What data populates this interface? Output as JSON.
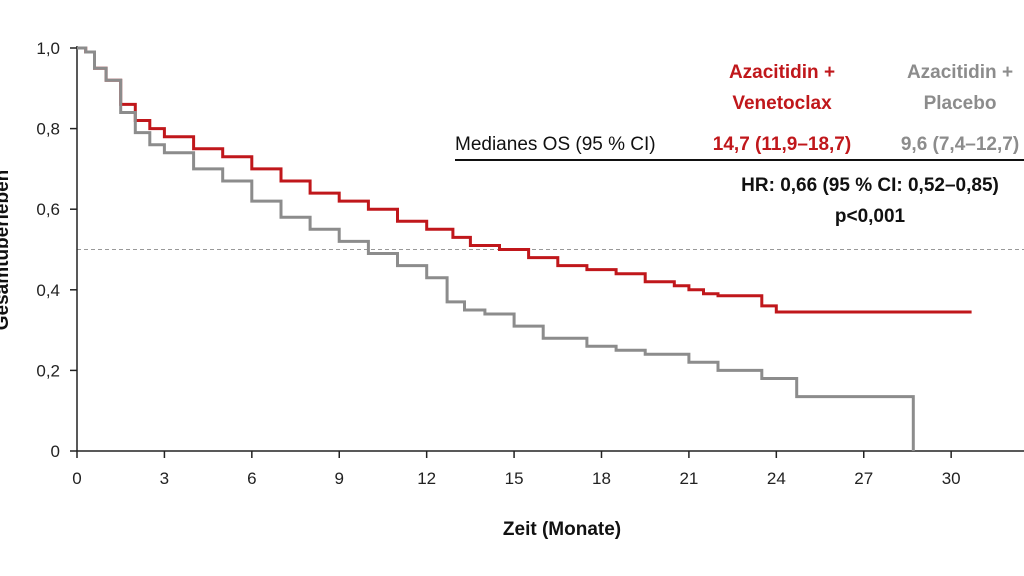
{
  "colors": {
    "treatment": "#c0171b",
    "control": "#8c8c8c",
    "axis": "#222222",
    "reference": "#999999"
  },
  "chart_data": {
    "type": "line",
    "subtype": "kaplan-meier",
    "xlabel": "Zeit (Monate)",
    "ylabel": "Gesamtüberleben",
    "x_ticks": [
      0,
      3,
      6,
      9,
      12,
      15,
      18,
      21,
      24,
      27,
      30
    ],
    "y_ticks": [
      0,
      0.2,
      0.4,
      0.6,
      0.8,
      1.0
    ],
    "y_tick_labels": [
      "0",
      "0,2",
      "0,4",
      "0,6",
      "0,8",
      "1,0"
    ],
    "xlim": [
      0,
      32.5
    ],
    "ylim": [
      0,
      1.0
    ],
    "reference_line_y": 0.5,
    "grid": false,
    "legend_position": "top-right",
    "series": [
      {
        "name": "Azacitidin + Venetoclax",
        "line1": "Azacitidin +",
        "line2": "Venetoclax",
        "median": "14,7 (11,9–18,7)",
        "color_key": "treatment",
        "x": [
          0,
          0.3,
          0.6,
          1.0,
          1.5,
          2.0,
          2.5,
          3.0,
          4.0,
          5.0,
          6.0,
          7.0,
          8.0,
          9.0,
          10.0,
          11.0,
          12.0,
          12.9,
          13.5,
          14.5,
          15.5,
          16.5,
          17.5,
          18.5,
          19.5,
          20.5,
          21.0,
          21.5,
          22.0,
          23.5,
          24.0,
          30.7
        ],
        "y": [
          1.0,
          0.99,
          0.95,
          0.92,
          0.86,
          0.82,
          0.8,
          0.78,
          0.75,
          0.73,
          0.7,
          0.67,
          0.64,
          0.62,
          0.6,
          0.57,
          0.55,
          0.53,
          0.51,
          0.5,
          0.48,
          0.46,
          0.45,
          0.44,
          0.42,
          0.41,
          0.4,
          0.39,
          0.385,
          0.36,
          0.345,
          0.345
        ]
      },
      {
        "name": "Azacitidin + Placebo",
        "line1": "Azacitidin +",
        "line2": "Placebo",
        "median": "9,6 (7,4–12,7)",
        "color_key": "control",
        "x": [
          0,
          0.3,
          0.6,
          1.0,
          1.5,
          2.0,
          2.5,
          3.0,
          4.0,
          5.0,
          6.0,
          7.0,
          8.0,
          9.0,
          10.0,
          11.0,
          12.0,
          12.7,
          13.3,
          14.0,
          15.0,
          16.0,
          17.5,
          18.5,
          19.5,
          21.0,
          22.0,
          23.5,
          24.7,
          28.7,
          28.7
        ],
        "y": [
          1.0,
          0.99,
          0.95,
          0.92,
          0.84,
          0.79,
          0.76,
          0.74,
          0.7,
          0.67,
          0.62,
          0.58,
          0.55,
          0.52,
          0.49,
          0.46,
          0.43,
          0.37,
          0.35,
          0.34,
          0.31,
          0.28,
          0.26,
          0.25,
          0.24,
          0.22,
          0.2,
          0.18,
          0.135,
          0.135,
          0.0
        ]
      }
    ],
    "annotations": {
      "medians_label": "Medianes OS (95 % CI)",
      "hr": "HR: 0,66 (95 % CI: 0,52–0,85)",
      "p_value": "p<0,001"
    }
  }
}
